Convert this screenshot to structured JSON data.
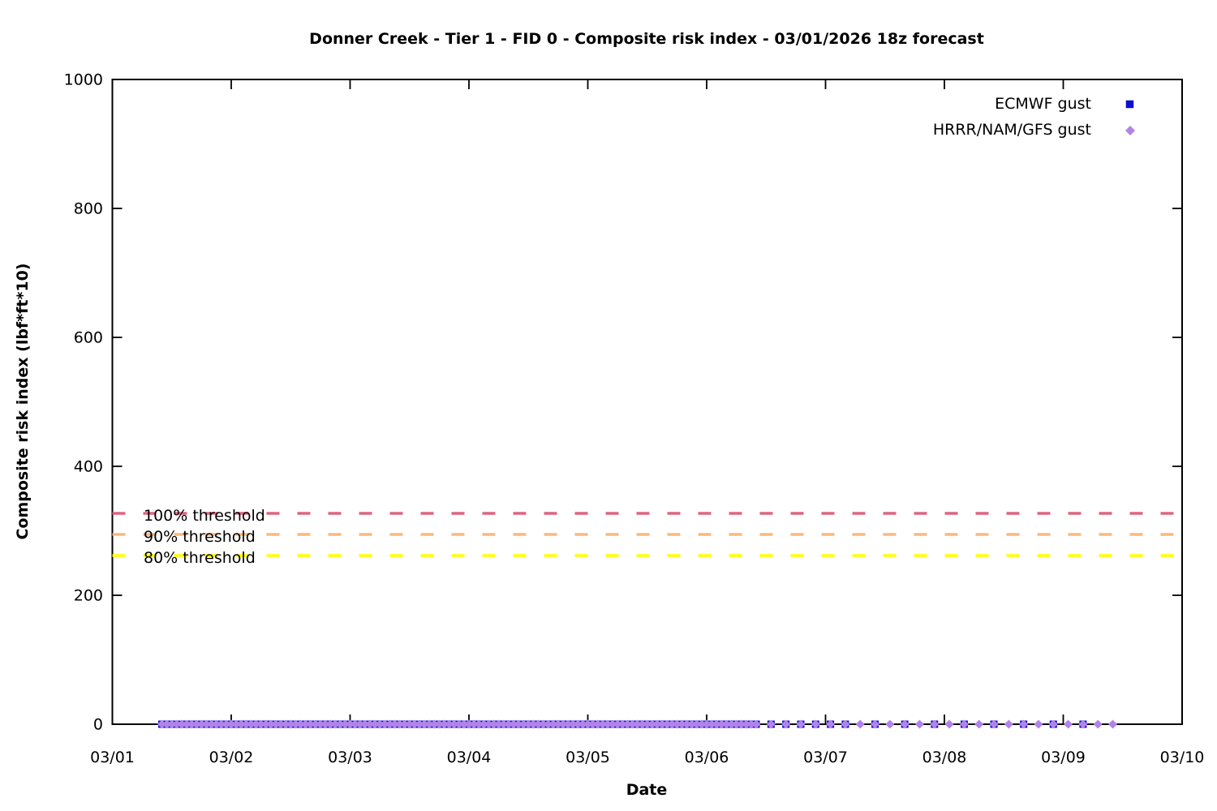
{
  "chart_data": {
    "type": "scatter",
    "title": "Donner Creek - Tier 1 - FID 0 - Composite risk index - 03/01/2026 18z forecast",
    "xlabel": "Date",
    "ylabel": "Composite risk index (lbf*ft*10)",
    "x_tick_labels": [
      "03/01",
      "03/02",
      "03/03",
      "03/04",
      "03/05",
      "03/06",
      "03/07",
      "03/08",
      "03/09",
      "03/10"
    ],
    "x_units": "hours since 03/01 00:00",
    "x_span_hours": 216,
    "hours_per_day": 24,
    "ylim": [
      0,
      1000
    ],
    "y_ticks": [
      0,
      200,
      400,
      600,
      800,
      1000
    ],
    "grid": false,
    "legend_position": "top-right",
    "series": [
      {
        "name": "ECMWF gust",
        "marker": "square",
        "color": "#0d0dd4",
        "marker_size": 9,
        "y_value": 0,
        "x_hours_segments": [
          {
            "start": 10,
            "end": 130,
            "step": 1
          },
          {
            "start": 133,
            "end": 148,
            "step": 3
          },
          {
            "start": 154,
            "end": 196,
            "step": 6
          }
        ]
      },
      {
        "name": "HRRR/NAM/GFS gust",
        "marker": "diamond",
        "color": "#b283e8",
        "marker_size": 11,
        "y_value": 0,
        "x_hours_segments": [
          {
            "start": 10,
            "end": 130,
            "step": 1
          },
          {
            "start": 133,
            "end": 202,
            "step": 3
          }
        ]
      }
    ],
    "thresholds": [
      {
        "label": "100% threshold",
        "percent": 100,
        "value": 327.0,
        "color": "#de6580",
        "style": "dashed"
      },
      {
        "label": "90% threshold",
        "percent": 90,
        "value": 294.3,
        "color": "#f7ba7e",
        "style": "dashed"
      },
      {
        "label": "80% threshold",
        "percent": 80,
        "value": 261.6,
        "color": "#ffff00",
        "style": "dashed"
      }
    ]
  }
}
